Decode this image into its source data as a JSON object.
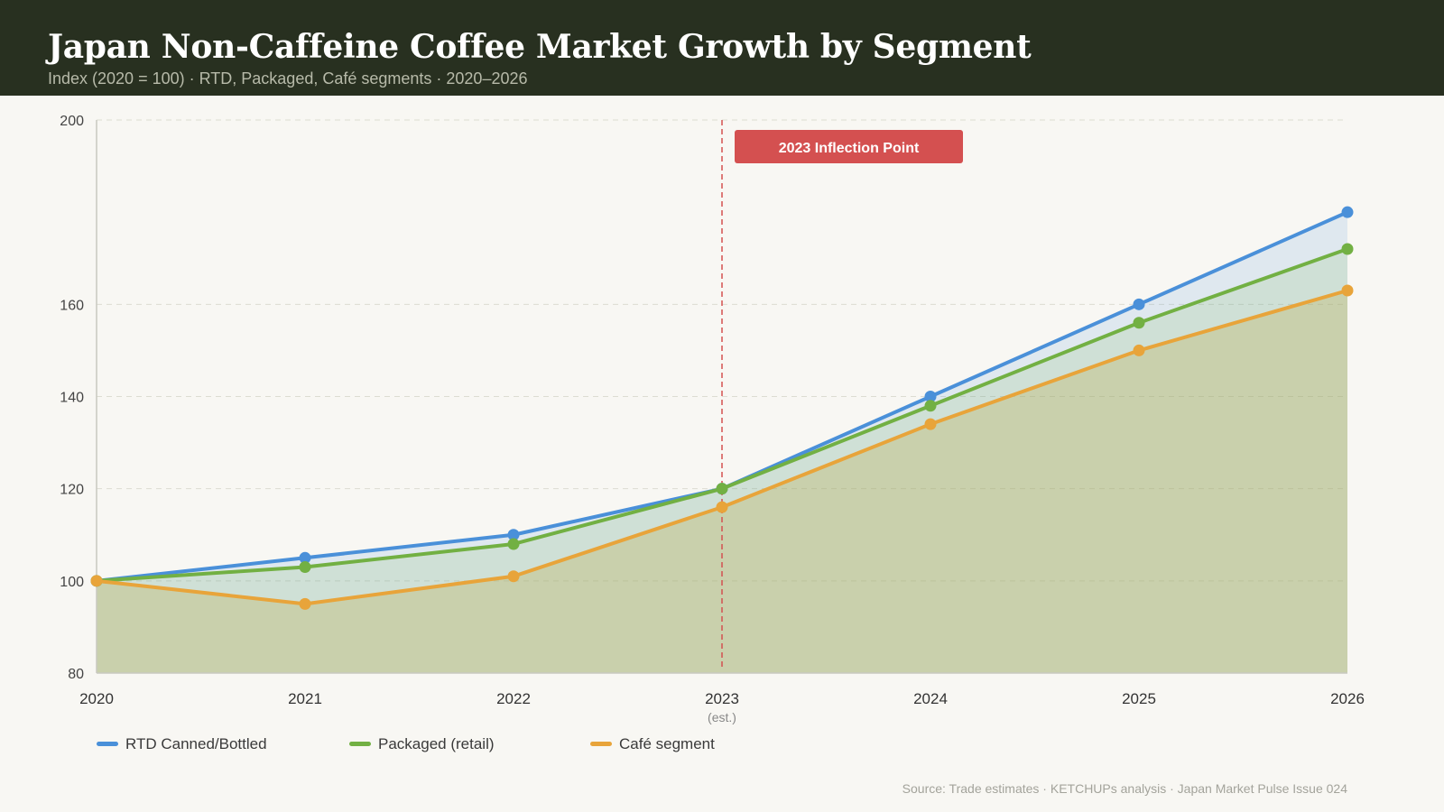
{
  "header": {
    "title": "Japan Non-Caffeine Coffee Market Growth by Segment",
    "subtitle": "Index (2020 = 100) · RTD, Packaged, Café segments · 2020–2026"
  },
  "chart_data": {
    "type": "line",
    "title": "Japan Non-Caffeine Coffee Market Growth by Segment",
    "subtitle": "Index (2020 = 100) · RTD, Packaged, Café segments · 2020–2026",
    "x": [
      "2020",
      "2021",
      "2022",
      "2023",
      "2024",
      "2025",
      "2026"
    ],
    "x_sublabels": [
      "",
      "",
      "",
      "(est.)",
      "",
      "",
      ""
    ],
    "xlabel": "",
    "ylabel": "",
    "ylim": [
      80,
      200
    ],
    "yticks": [
      80,
      100,
      120,
      140,
      160,
      200
    ],
    "grid": "horizontal dashed",
    "area_fill": true,
    "series": [
      {
        "name": "RTD Canned/Bottled",
        "color": "#4a90d9",
        "values": [
          100,
          105,
          110,
          120,
          140,
          160,
          180
        ]
      },
      {
        "name": "Packaged (retail)",
        "color": "#72b043",
        "values": [
          100,
          103,
          108,
          120,
          138,
          156,
          172
        ]
      },
      {
        "name": "Café segment",
        "color": "#e8a43a",
        "values": [
          100,
          95,
          101,
          116,
          134,
          150,
          163
        ]
      }
    ],
    "annotation": {
      "x": "2023",
      "label": "2023 Inflection Point",
      "color": "#d45050"
    },
    "legend_position": "bottom-left"
  },
  "footer": {
    "source": "Source: Trade estimates · KETCHUPs analysis · Japan Market Pulse Issue 024"
  }
}
